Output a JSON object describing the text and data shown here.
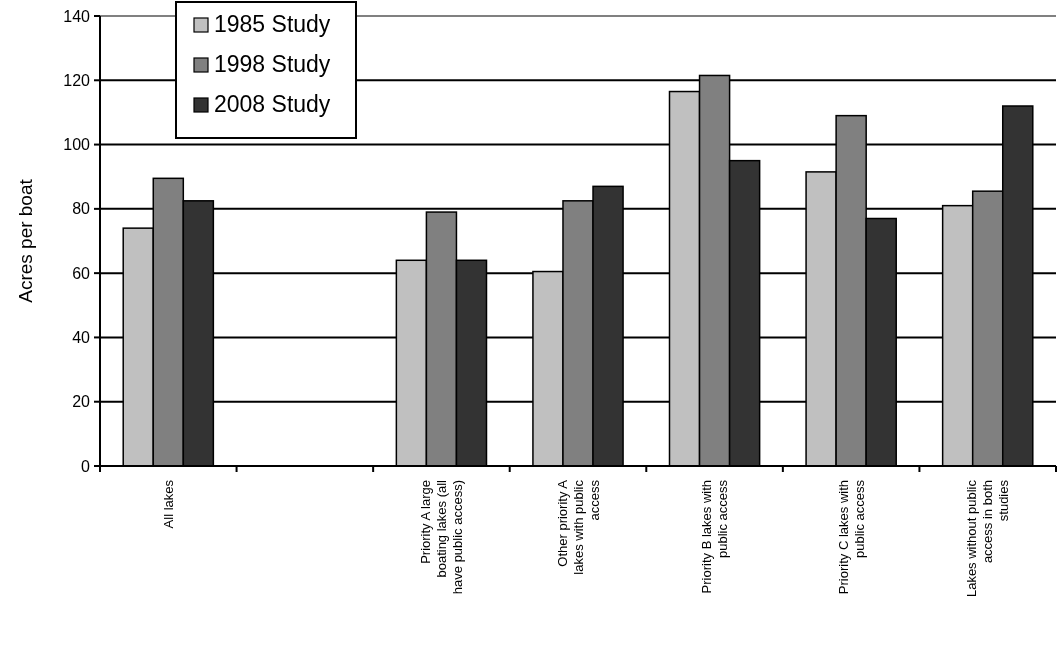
{
  "chart_data": {
    "type": "bar",
    "ylabel": "Acres per boat",
    "categories": [
      "All lakes",
      null,
      "Priority A large boating lakes (all have public access)",
      "Other priority  A lakes with public access",
      "Priority B lakes with public access",
      "Priority C lakes with public access",
      "Lakes without public access in both studies"
    ],
    "series": [
      {
        "name": "1985 Study",
        "color": "#c0c0c0",
        "values": [
          74,
          null,
          64,
          60.5,
          116.5,
          91.5,
          81
        ]
      },
      {
        "name": "1998 Study",
        "color": "#808080",
        "values": [
          89.5,
          null,
          79,
          82.5,
          121.5,
          109,
          85.5
        ]
      },
      {
        "name": "2008 Study",
        "color": "#333333",
        "values": [
          82.5,
          null,
          64,
          87,
          95,
          77,
          112
        ]
      }
    ],
    "ylim": [
      0,
      140
    ],
    "yticks": [
      0,
      20,
      40,
      60,
      80,
      100,
      120,
      140
    ],
    "grid": "y",
    "legend": "top left"
  }
}
